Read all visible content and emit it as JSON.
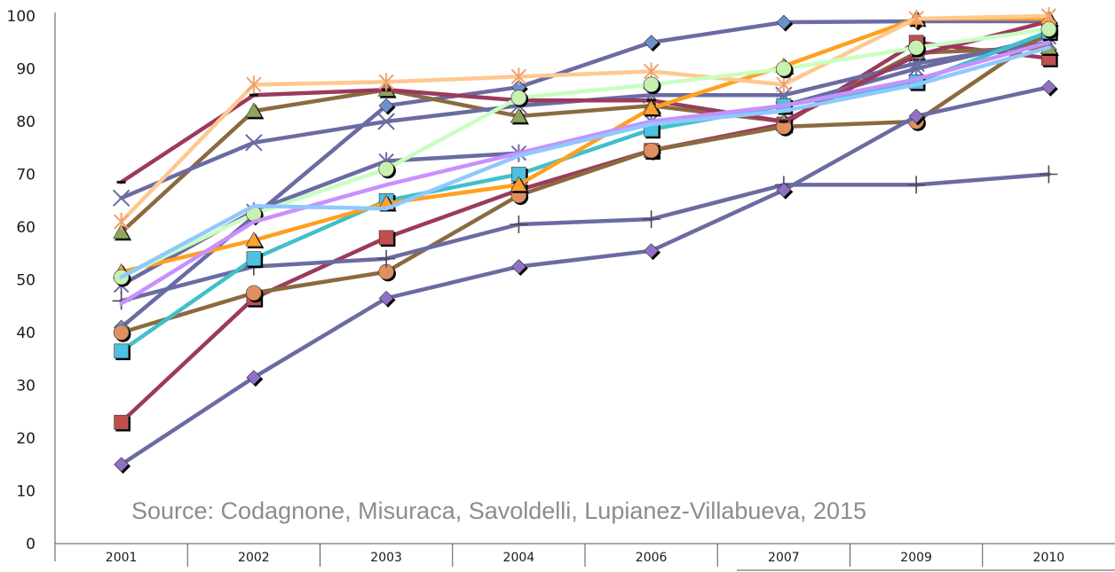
{
  "chart_data": {
    "type": "line",
    "title": "",
    "xlabel": "",
    "ylabel": "",
    "categories": [
      "2001",
      "2002",
      "2003",
      "2004",
      "2006",
      "2007",
      "2009",
      "2010"
    ],
    "ylim": [
      0,
      100
    ],
    "yticks": [
      0,
      10,
      20,
      30,
      40,
      50,
      60,
      70,
      80,
      90,
      100
    ],
    "grid": false,
    "legend": "none",
    "annotation": "Source: Codagnone, Misuraca, Savoldelli, Lupianez-Villabueva, 2015",
    "series": [
      {
        "color": "#6b6ba3",
        "marker": "diamond",
        "marker_color": "#6d8fd0",
        "values": [
          41,
          62,
          83,
          86.5,
          95,
          98.8,
          99,
          99
        ]
      },
      {
        "color": "#9b3a5e",
        "marker": "square",
        "marker_color": "#c05050",
        "values": [
          23,
          46.5,
          58,
          67,
          74.5,
          79.5,
          95,
          92
        ]
      },
      {
        "color": "#8b6a3e",
        "marker": "triangle",
        "marker_color": "#8fa65a",
        "values": [
          59,
          82,
          86,
          81,
          83,
          80,
          93,
          94
        ]
      },
      {
        "color": "#6b6ba3",
        "marker": "x",
        "marker_color": "#6b6ba3",
        "values": [
          65.5,
          76,
          80,
          83,
          85,
          85,
          91,
          95
        ]
      },
      {
        "color": "#6b6ba3",
        "marker": "xstar",
        "marker_color": "#6b6ba3",
        "values": [
          49,
          63,
          72.5,
          74,
          80,
          83,
          90,
          96
        ]
      },
      {
        "color": "#8b6a3e",
        "marker": "circle",
        "marker_color": "#e09060",
        "values": [
          40,
          47.5,
          51.5,
          66,
          74.5,
          79,
          80,
          97
        ]
      },
      {
        "color": "#6b6ba3",
        "marker": "plus",
        "marker_color": "#4a4a5a",
        "values": [
          46,
          52.5,
          54,
          60.5,
          61.5,
          68,
          68,
          70
        ]
      },
      {
        "color": "#9b3a5e",
        "marker": "dash",
        "marker_color": "#9b3a5e",
        "values": [
          68.5,
          85,
          86,
          84,
          84,
          80,
          92.5,
          99
        ]
      },
      {
        "color": "#6b6ba3",
        "marker": "diamond",
        "marker_color": "#9370c8",
        "values": [
          15,
          31.5,
          46.5,
          52.5,
          55.5,
          67,
          81,
          86.5
        ]
      },
      {
        "color": "#40c0c8",
        "marker": "square",
        "marker_color": "#50c0e0",
        "values": [
          36.5,
          54,
          65,
          70,
          78.5,
          83,
          87.5,
          97
        ]
      },
      {
        "color": "#ffa020",
        "marker": "triangle",
        "marker_color": "#ffa030",
        "values": [
          51.5,
          57.5,
          64.5,
          68,
          82.5,
          90.5,
          99.5,
          99.5
        ]
      },
      {
        "color": "#ffc890",
        "marker": "xstar",
        "marker_color": "#f0a070",
        "values": [
          61,
          87,
          87.5,
          88.5,
          89.5,
          87,
          99.5,
          100
        ]
      },
      {
        "color": "#c8ffc0",
        "marker": "circle",
        "marker_color": "#c8f0b0",
        "values": [
          50.5,
          62.5,
          71,
          84.5,
          87,
          90,
          94,
          97.5
        ]
      },
      {
        "color": "#c890ff",
        "marker": "none",
        "marker_color": "#c890ff",
        "values": [
          45.5,
          61,
          68,
          74,
          80,
          83,
          88,
          95
        ]
      },
      {
        "color": "#90c8ff",
        "marker": "none",
        "marker_color": "#90c8ff",
        "values": [
          50.5,
          64,
          63.5,
          73.5,
          79.5,
          82,
          87,
          94
        ]
      }
    ]
  }
}
